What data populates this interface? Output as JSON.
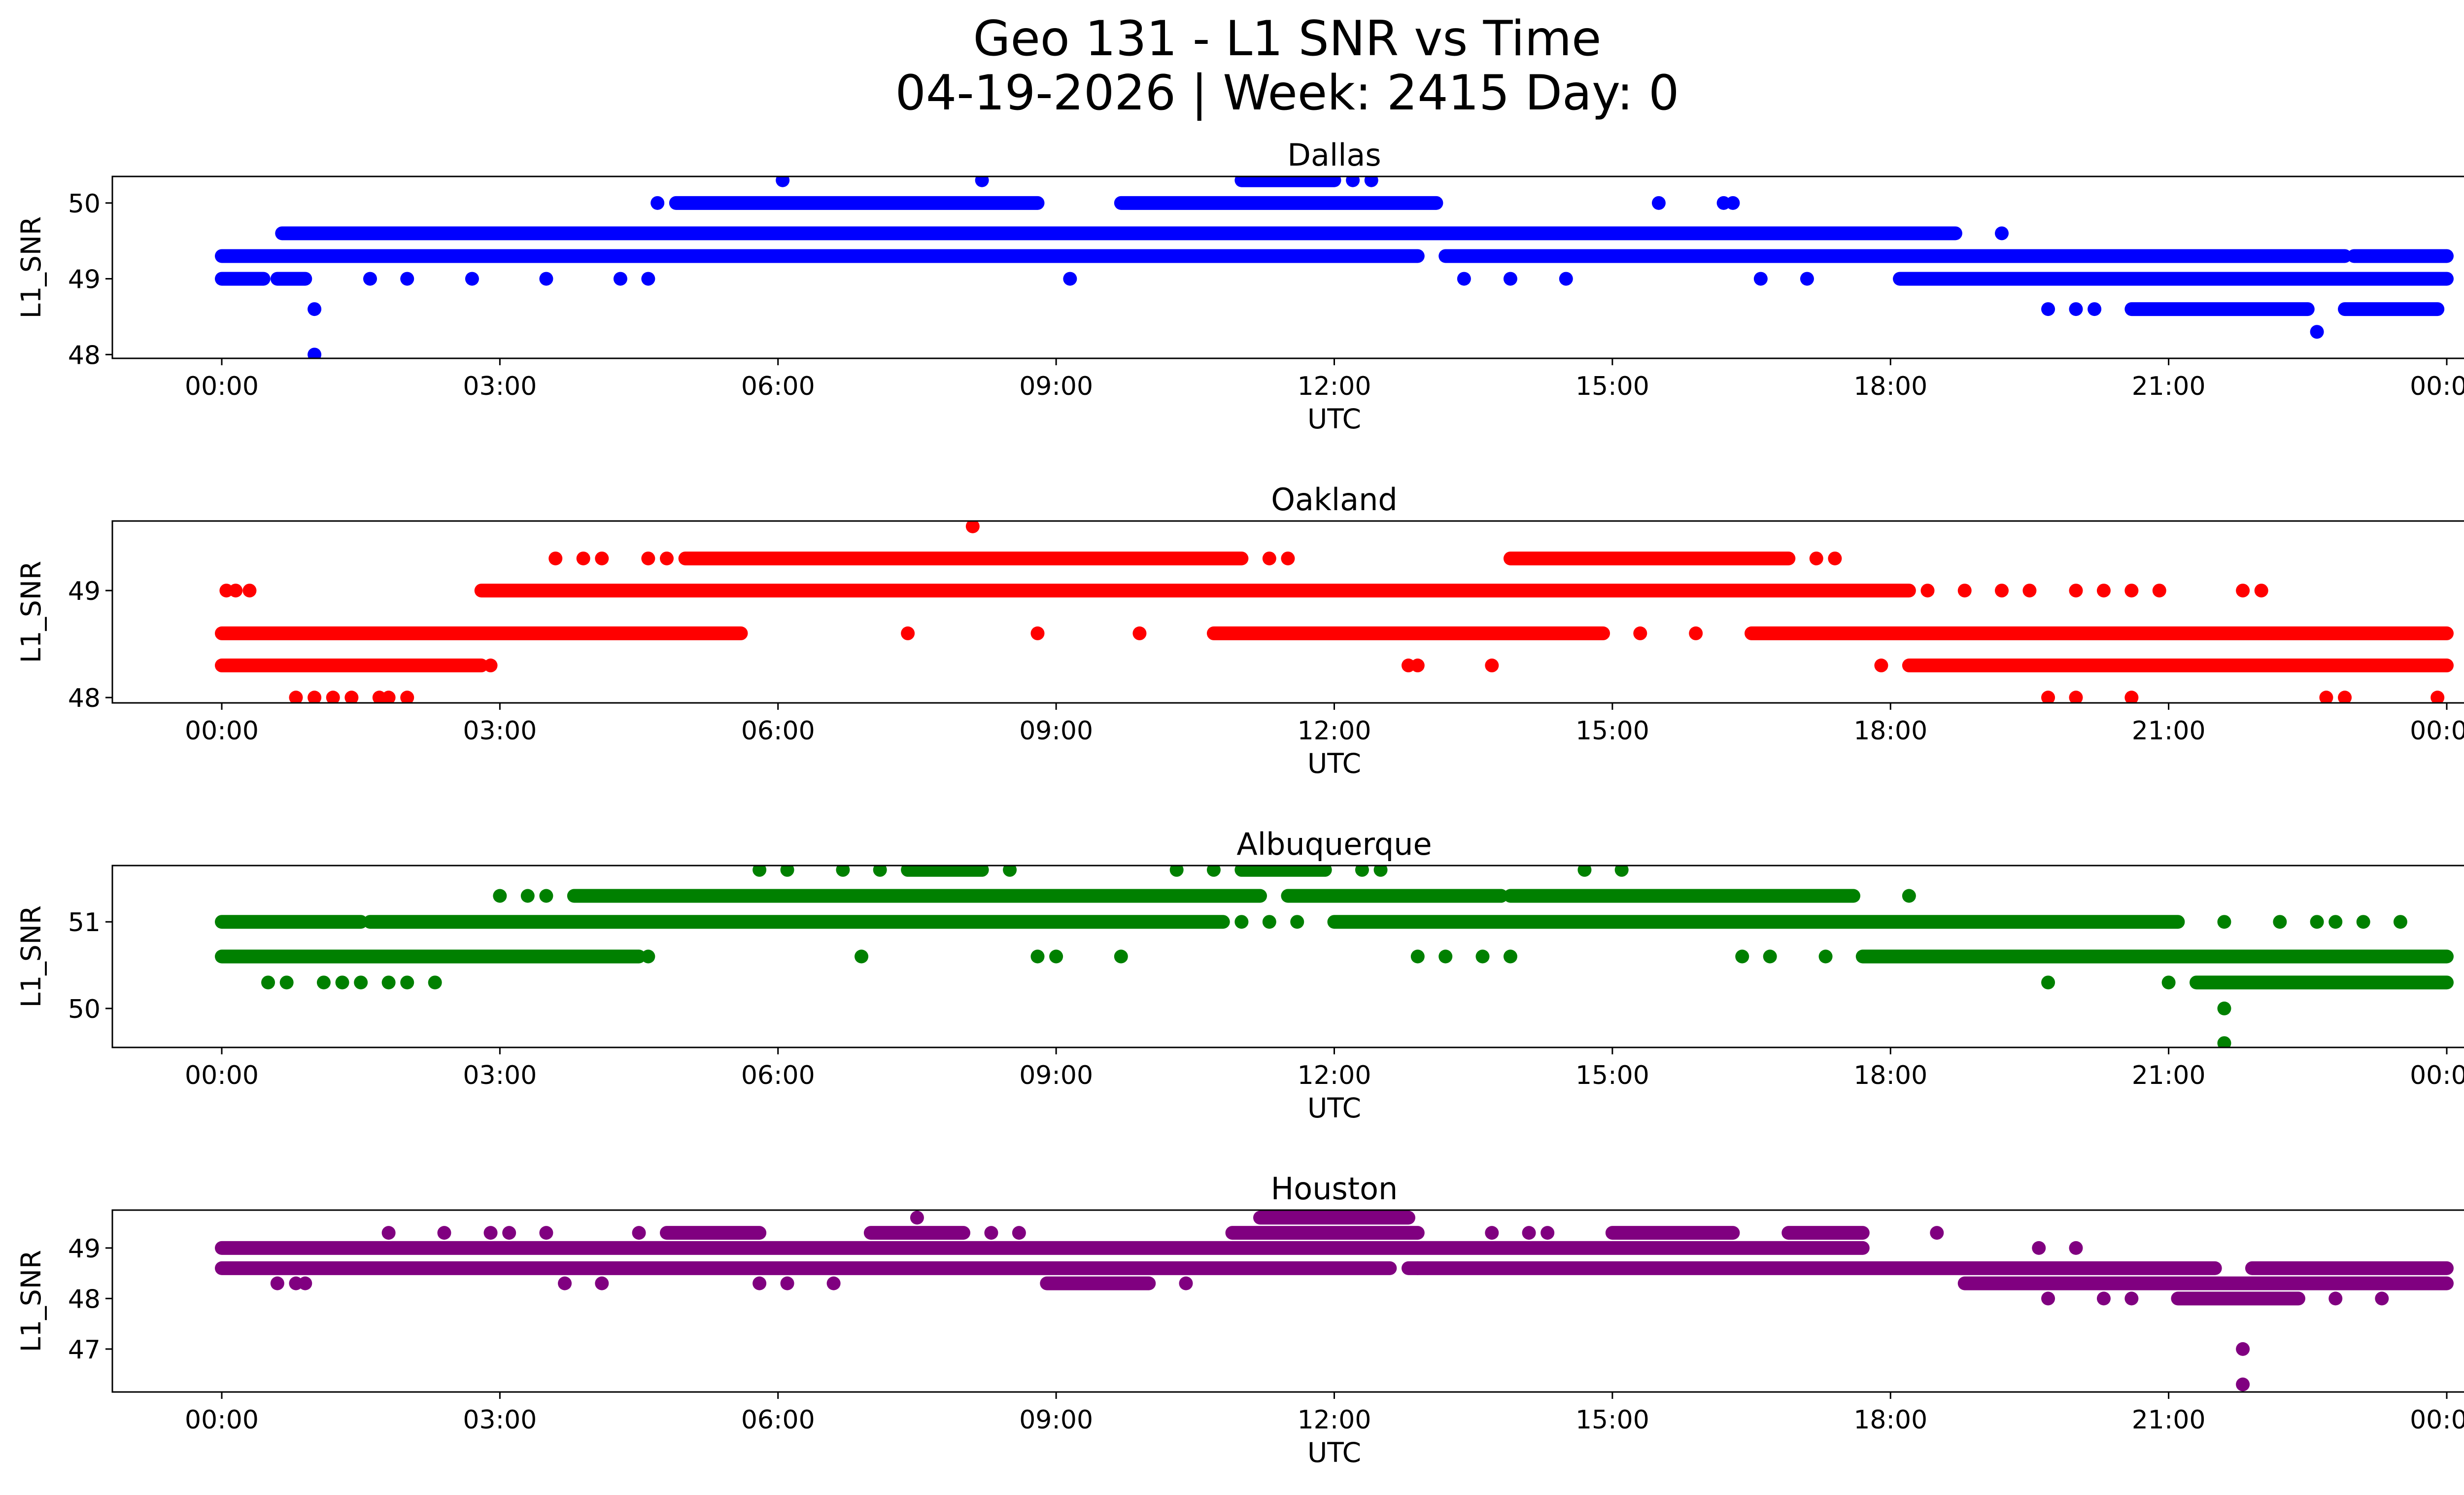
{
  "title_line1": "Geo 131 - L1 SNR vs Time",
  "title_line2": "04-19-2026 | Week: 2415 Day: 0",
  "chart_data": [
    {
      "type": "scatter",
      "title": "Dallas",
      "xlabel": "UTC",
      "ylabel": "L1_SNR",
      "color": "#0000ff",
      "x_tick_labels": [
        "00:00",
        "03:00",
        "06:00",
        "09:00",
        "12:00",
        "15:00",
        "18:00",
        "21:00",
        "00:00"
      ],
      "xlim_hours": [
        -1.18,
        25.18
      ],
      "ylim": [
        47.95,
        50.35
      ],
      "y_ticks": [
        48,
        49,
        50
      ],
      "runs": [
        {
          "y": 49.3,
          "x": [
            [
              0,
              12.9
            ],
            [
              13.2,
              22.9
            ],
            [
              23.0,
              24.0
            ]
          ]
        },
        {
          "y": 49.0,
          "x": [
            [
              0,
              0.45
            ],
            [
              0.6,
              0.9
            ],
            [
              18.1,
              24.0
            ]
          ]
        },
        {
          "y": 49.6,
          "x": [
            [
              0.65,
              18.7
            ]
          ]
        },
        {
          "y": 50.0,
          "x": [
            [
              4.9,
              8.8
            ],
            [
              9.7,
              13.1
            ]
          ]
        },
        {
          "y": 50.3,
          "x": [
            [
              11.0,
              12.0
            ]
          ]
        },
        {
          "y": 48.6,
          "x": [
            [
              20.6,
              22.5
            ],
            [
              22.9,
              23.9
            ]
          ]
        }
      ],
      "points": [
        {
          "x": 1.0,
          "y": 48.6
        },
        {
          "x": 1.0,
          "y": 48.0
        },
        {
          "x": 1.6,
          "y": 49.0
        },
        {
          "x": 2.0,
          "y": 49.0
        },
        {
          "x": 2.7,
          "y": 49.0
        },
        {
          "x": 3.5,
          "y": 49.0
        },
        {
          "x": 4.3,
          "y": 49.0
        },
        {
          "x": 4.6,
          "y": 49.0
        },
        {
          "x": 9.15,
          "y": 49.0
        },
        {
          "x": 13.4,
          "y": 49.0
        },
        {
          "x": 13.9,
          "y": 49.0
        },
        {
          "x": 14.5,
          "y": 49.0
        },
        {
          "x": 16.6,
          "y": 49.0
        },
        {
          "x": 17.1,
          "y": 49.0
        },
        {
          "x": 19.7,
          "y": 48.6
        },
        {
          "x": 20.0,
          "y": 48.6
        },
        {
          "x": 20.2,
          "y": 48.6
        },
        {
          "x": 22.6,
          "y": 48.3
        },
        {
          "x": 6.05,
          "y": 50.3
        },
        {
          "x": 8.2,
          "y": 50.3
        },
        {
          "x": 12.2,
          "y": 50.3
        },
        {
          "x": 12.4,
          "y": 50.3
        },
        {
          "x": 4.7,
          "y": 50.0
        },
        {
          "x": 15.5,
          "y": 50.0
        },
        {
          "x": 16.2,
          "y": 50.0
        },
        {
          "x": 16.3,
          "y": 50.0
        },
        {
          "x": 10.8,
          "y": 49.3
        },
        {
          "x": 19.2,
          "y": 49.6
        },
        {
          "x": 21.6,
          "y": 49.3
        },
        {
          "x": 21.8,
          "y": 49.3
        }
      ]
    },
    {
      "type": "scatter",
      "title": "Oakland",
      "xlabel": "UTC",
      "ylabel": "L1_SNR",
      "color": "#ff0000",
      "x_tick_labels": [
        "00:00",
        "03:00",
        "06:00",
        "09:00",
        "12:00",
        "15:00",
        "18:00",
        "21:00",
        "00:00"
      ],
      "xlim_hours": [
        -1.18,
        25.18
      ],
      "ylim": [
        47.95,
        49.65
      ],
      "y_ticks": [
        48,
        49
      ],
      "runs": [
        {
          "y": 48.6,
          "x": [
            [
              0,
              5.6
            ],
            [
              10.7,
              14.9
            ],
            [
              16.5,
              24.0
            ]
          ]
        },
        {
          "y": 48.3,
          "x": [
            [
              0,
              2.8
            ],
            [
              18.2,
              24.0
            ]
          ]
        },
        {
          "y": 49.0,
          "x": [
            [
              2.8,
              18.2
            ]
          ]
        },
        {
          "y": 49.3,
          "x": [
            [
              5.0,
              11.0
            ],
            [
              13.9,
              16.9
            ]
          ]
        }
      ],
      "points": [
        {
          "x": 0.05,
          "y": 49.0
        },
        {
          "x": 0.15,
          "y": 49.0
        },
        {
          "x": 0.3,
          "y": 49.0
        },
        {
          "x": 0.8,
          "y": 48.0
        },
        {
          "x": 1.0,
          "y": 48.0
        },
        {
          "x": 1.2,
          "y": 48.0
        },
        {
          "x": 1.4,
          "y": 48.0
        },
        {
          "x": 1.7,
          "y": 48.0
        },
        {
          "x": 1.8,
          "y": 48.0
        },
        {
          "x": 2.0,
          "y": 48.0
        },
        {
          "x": 2.9,
          "y": 48.3
        },
        {
          "x": 3.6,
          "y": 49.3
        },
        {
          "x": 3.9,
          "y": 49.3
        },
        {
          "x": 4.1,
          "y": 49.3
        },
        {
          "x": 4.6,
          "y": 49.3
        },
        {
          "x": 4.8,
          "y": 49.3
        },
        {
          "x": 7.4,
          "y": 48.6
        },
        {
          "x": 8.8,
          "y": 48.6
        },
        {
          "x": 9.9,
          "y": 48.6
        },
        {
          "x": 8.1,
          "y": 49.6
        },
        {
          "x": 11.3,
          "y": 49.3
        },
        {
          "x": 11.5,
          "y": 49.3
        },
        {
          "x": 12.8,
          "y": 48.3
        },
        {
          "x": 12.9,
          "y": 48.3
        },
        {
          "x": 13.7,
          "y": 48.3
        },
        {
          "x": 15.3,
          "y": 48.6
        },
        {
          "x": 15.9,
          "y": 48.6
        },
        {
          "x": 17.2,
          "y": 49.3
        },
        {
          "x": 17.4,
          "y": 49.3
        },
        {
          "x": 18.4,
          "y": 49.0
        },
        {
          "x": 18.8,
          "y": 49.0
        },
        {
          "x": 19.2,
          "y": 49.0
        },
        {
          "x": 19.5,
          "y": 49.0
        },
        {
          "x": 20.0,
          "y": 49.0
        },
        {
          "x": 20.3,
          "y": 49.0
        },
        {
          "x": 20.6,
          "y": 49.0
        },
        {
          "x": 20.9,
          "y": 49.0
        },
        {
          "x": 21.8,
          "y": 49.0
        },
        {
          "x": 22.0,
          "y": 49.0
        },
        {
          "x": 17.9,
          "y": 48.3
        },
        {
          "x": 19.7,
          "y": 48.0
        },
        {
          "x": 20.0,
          "y": 48.0
        },
        {
          "x": 20.6,
          "y": 48.0
        },
        {
          "x": 22.7,
          "y": 48.0
        },
        {
          "x": 22.9,
          "y": 48.0
        },
        {
          "x": 23.9,
          "y": 48.0
        }
      ]
    },
    {
      "type": "scatter",
      "title": "Albuquerque",
      "xlabel": "UTC",
      "ylabel": "L1_SNR",
      "color": "#008000",
      "x_tick_labels": [
        "00:00",
        "03:00",
        "06:00",
        "09:00",
        "12:00",
        "15:00",
        "18:00",
        "21:00",
        "00:00"
      ],
      "xlim_hours": [
        -1.18,
        25.18
      ],
      "ylim": [
        49.55,
        51.65
      ],
      "y_ticks": [
        50,
        51
      ],
      "runs": [
        {
          "y": 51.0,
          "x": [
            [
              0,
              1.5
            ],
            [
              1.6,
              10.8
            ],
            [
              12.0,
              21.1
            ]
          ]
        },
        {
          "y": 50.6,
          "x": [
            [
              0,
              4.5
            ],
            [
              17.7,
              24.0
            ]
          ]
        },
        {
          "y": 51.3,
          "x": [
            [
              3.8,
              11.2
            ],
            [
              11.5,
              13.8
            ],
            [
              13.9,
              17.6
            ]
          ]
        },
        {
          "y": 50.3,
          "x": [
            [
              21.3,
              24.0
            ]
          ]
        },
        {
          "y": 51.6,
          "x": [
            [
              7.4,
              8.2
            ],
            [
              11.0,
              11.9
            ]
          ]
        }
      ],
      "points": [
        {
          "x": 0.5,
          "y": 50.3
        },
        {
          "x": 0.7,
          "y": 50.3
        },
        {
          "x": 1.1,
          "y": 50.3
        },
        {
          "x": 1.3,
          "y": 50.3
        },
        {
          "x": 1.5,
          "y": 50.3
        },
        {
          "x": 1.8,
          "y": 50.3
        },
        {
          "x": 2.0,
          "y": 50.3
        },
        {
          "x": 2.3,
          "y": 50.3
        },
        {
          "x": 3.0,
          "y": 51.3
        },
        {
          "x": 3.3,
          "y": 51.3
        },
        {
          "x": 3.5,
          "y": 51.3
        },
        {
          "x": 4.6,
          "y": 50.6
        },
        {
          "x": 6.9,
          "y": 50.6
        },
        {
          "x": 8.8,
          "y": 50.6
        },
        {
          "x": 9.0,
          "y": 50.6
        },
        {
          "x": 9.7,
          "y": 50.6
        },
        {
          "x": 5.8,
          "y": 51.6
        },
        {
          "x": 6.1,
          "y": 51.6
        },
        {
          "x": 6.7,
          "y": 51.6
        },
        {
          "x": 7.1,
          "y": 51.6
        },
        {
          "x": 8.5,
          "y": 51.6
        },
        {
          "x": 10.3,
          "y": 51.6
        },
        {
          "x": 10.7,
          "y": 51.6
        },
        {
          "x": 12.3,
          "y": 51.6
        },
        {
          "x": 12.5,
          "y": 51.6
        },
        {
          "x": 14.7,
          "y": 51.6
        },
        {
          "x": 15.1,
          "y": 51.6
        },
        {
          "x": 11.0,
          "y": 51.0
        },
        {
          "x": 11.3,
          "y": 51.0
        },
        {
          "x": 11.6,
          "y": 51.0
        },
        {
          "x": 12.9,
          "y": 50.6
        },
        {
          "x": 13.2,
          "y": 50.6
        },
        {
          "x": 13.6,
          "y": 50.6
        },
        {
          "x": 13.9,
          "y": 50.6
        },
        {
          "x": 16.4,
          "y": 50.6
        },
        {
          "x": 16.7,
          "y": 50.6
        },
        {
          "x": 17.3,
          "y": 50.6
        },
        {
          "x": 18.2,
          "y": 51.3
        },
        {
          "x": 19.7,
          "y": 50.3
        },
        {
          "x": 21.6,
          "y": 51.0
        },
        {
          "x": 22.2,
          "y": 51.0
        },
        {
          "x": 22.6,
          "y": 51.0
        },
        {
          "x": 22.8,
          "y": 51.0
        },
        {
          "x": 23.1,
          "y": 51.0
        },
        {
          "x": 23.5,
          "y": 51.0
        },
        {
          "x": 21.0,
          "y": 50.3
        },
        {
          "x": 21.6,
          "y": 50.0
        },
        {
          "x": 21.6,
          "y": 49.6
        }
      ]
    },
    {
      "type": "scatter",
      "title": "Houston",
      "xlabel": "UTC",
      "ylabel": "L1_SNR",
      "color": "#800080",
      "x_tick_labels": [
        "00:00",
        "03:00",
        "06:00",
        "09:00",
        "12:00",
        "15:00",
        "18:00",
        "21:00",
        "00:00"
      ],
      "xlim_hours": [
        -1.18,
        25.18
      ],
      "ylim": [
        46.15,
        49.75
      ],
      "y_ticks": [
        47,
        48,
        49
      ],
      "runs": [
        {
          "y": 48.6,
          "x": [
            [
              0,
              12.6
            ],
            [
              12.8,
              21.5
            ],
            [
              21.9,
              24.0
            ]
          ]
        },
        {
          "y": 49.0,
          "x": [
            [
              0,
              17.7
            ]
          ]
        },
        {
          "y": 48.3,
          "x": [
            [
              18.8,
              24.0
            ]
          ]
        },
        {
          "y": 49.3,
          "x": [
            [
              4.8,
              5.8
            ],
            [
              7.0,
              8.0
            ],
            [
              10.9,
              12.9
            ],
            [
              15.0,
              16.3
            ],
            [
              16.9,
              17.7
            ]
          ]
        },
        {
          "y": 49.6,
          "x": [
            [
              11.2,
              12.8
            ]
          ]
        },
        {
          "y": 48.0,
          "x": [
            [
              21.1,
              22.4
            ]
          ]
        },
        {
          "y": 48.3,
          "x": [
            [
              8.9,
              10.0
            ]
          ]
        }
      ],
      "points": [
        {
          "x": 1.8,
          "y": 49.3
        },
        {
          "x": 2.4,
          "y": 49.3
        },
        {
          "x": 2.9,
          "y": 49.3
        },
        {
          "x": 3.1,
          "y": 49.3
        },
        {
          "x": 3.5,
          "y": 49.3
        },
        {
          "x": 4.5,
          "y": 49.3
        },
        {
          "x": 7.5,
          "y": 49.6
        },
        {
          "x": 8.3,
          "y": 49.3
        },
        {
          "x": 8.6,
          "y": 49.3
        },
        {
          "x": 0.6,
          "y": 48.3
        },
        {
          "x": 0.8,
          "y": 48.3
        },
        {
          "x": 0.9,
          "y": 48.3
        },
        {
          "x": 3.7,
          "y": 48.3
        },
        {
          "x": 4.1,
          "y": 48.3
        },
        {
          "x": 5.8,
          "y": 48.3
        },
        {
          "x": 6.1,
          "y": 48.3
        },
        {
          "x": 6.6,
          "y": 48.3
        },
        {
          "x": 10.4,
          "y": 48.3
        },
        {
          "x": 12.9,
          "y": 48.6
        },
        {
          "x": 13.7,
          "y": 49.3
        },
        {
          "x": 14.1,
          "y": 49.3
        },
        {
          "x": 14.3,
          "y": 49.3
        },
        {
          "x": 18.5,
          "y": 49.3
        },
        {
          "x": 19.6,
          "y": 49.0
        },
        {
          "x": 20.0,
          "y": 49.0
        },
        {
          "x": 19.7,
          "y": 48.0
        },
        {
          "x": 20.3,
          "y": 48.0
        },
        {
          "x": 20.6,
          "y": 48.0
        },
        {
          "x": 22.8,
          "y": 48.0
        },
        {
          "x": 23.3,
          "y": 48.0
        },
        {
          "x": 21.8,
          "y": 47.0
        },
        {
          "x": 21.8,
          "y": 46.3
        }
      ]
    }
  ]
}
